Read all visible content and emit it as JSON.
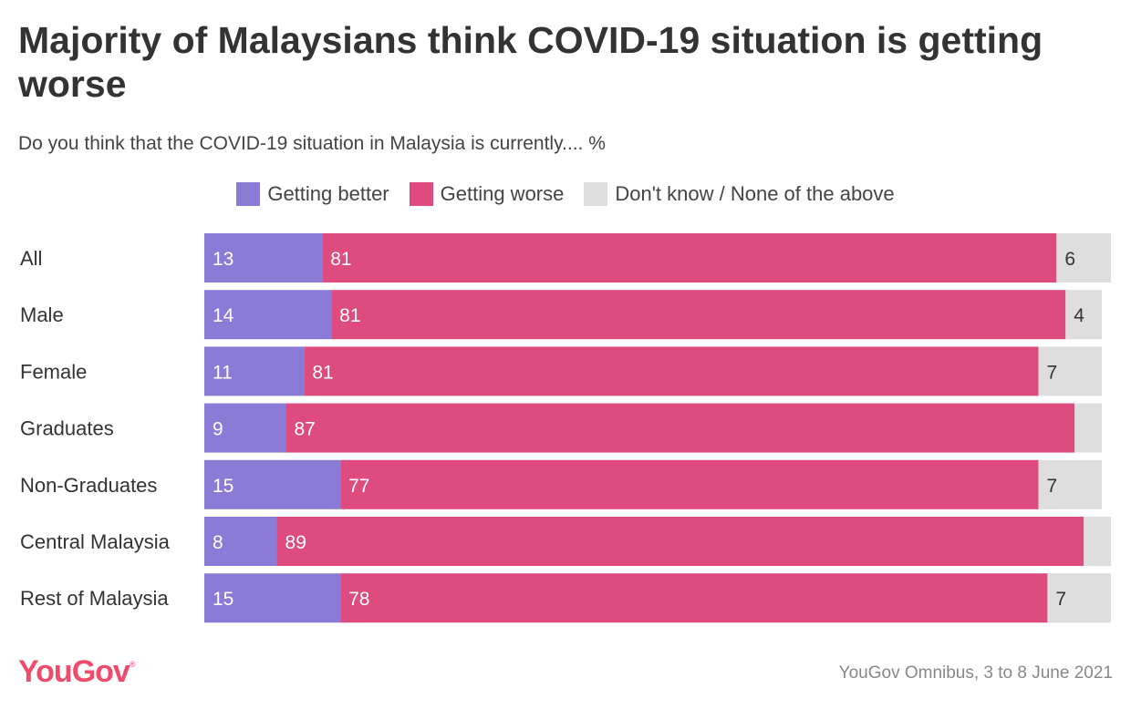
{
  "title": "Majority of Malaysians think COVID-19 situation is getting worse",
  "subtitle": "Do you think that the COVID-19 situation in Malaysia is currently.... %",
  "legend": [
    {
      "label": "Getting better",
      "color": "#8a7bd6"
    },
    {
      "label": "Getting worse",
      "color": "#de4b7e"
    },
    {
      "label": "Don't know / None of the above",
      "color": "#dedede"
    }
  ],
  "chart_data": {
    "type": "bar",
    "orientation": "horizontal",
    "stacked": true,
    "title": "Majority of Malaysians think COVID-19 situation is getting worse",
    "subtitle": "Do you think that the COVID-19 situation in Malaysia is currently.... %",
    "categories": [
      "All",
      "Male",
      "Female",
      "Graduates",
      "Non-Graduates",
      "Central Malaysia",
      "Rest of Malaysia"
    ],
    "series": [
      {
        "name": "Getting better",
        "color": "#8a7bd6",
        "values": [
          13,
          14,
          11,
          9,
          15,
          8,
          15
        ]
      },
      {
        "name": "Getting worse",
        "color": "#de4b7e",
        "values": [
          81,
          81,
          81,
          87,
          77,
          89,
          78
        ]
      },
      {
        "name": "Don't know / None of the above",
        "color": "#dedede",
        "values": [
          6,
          4,
          7,
          3,
          7,
          3,
          7
        ]
      }
    ],
    "shown_labels": [
      [
        "13",
        "81",
        "6"
      ],
      [
        "14",
        "81",
        "4"
      ],
      [
        "11",
        "81",
        "7"
      ],
      [
        "9",
        "87",
        ""
      ],
      [
        "15",
        "77",
        "7"
      ],
      [
        "8",
        "89",
        ""
      ],
      [
        "15",
        "78",
        "7"
      ]
    ],
    "xlim": [
      0,
      100
    ],
    "grid": false,
    "legend_position": "top-center"
  },
  "footer": {
    "logo": "YouGov",
    "logo_mark": "®",
    "source": "YouGov Omnibus, 3 to 8 June 2021"
  }
}
